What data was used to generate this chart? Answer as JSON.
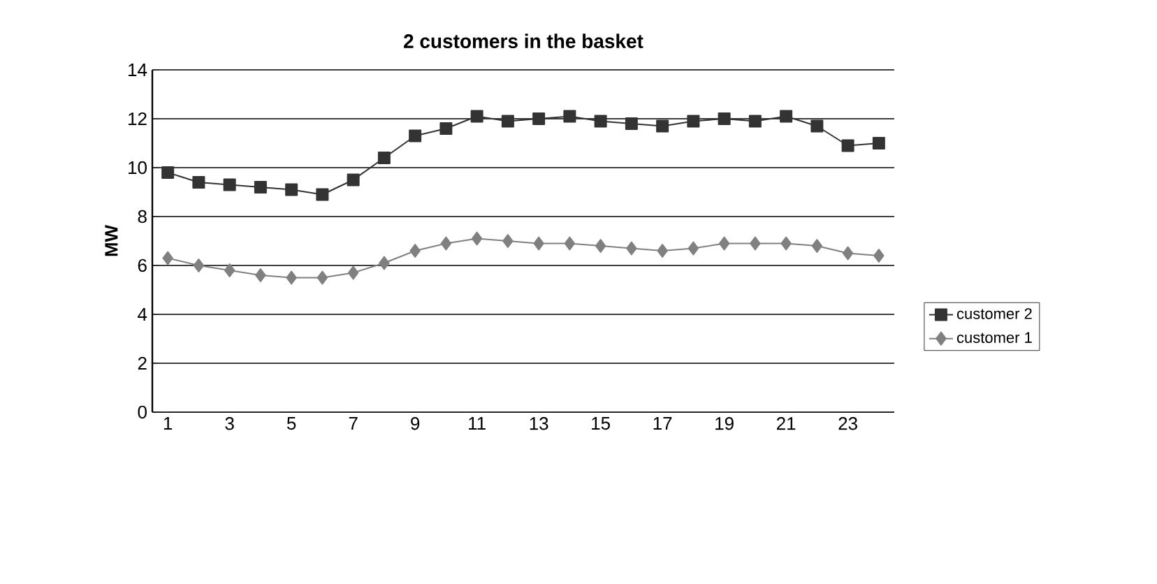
{
  "chart_data": {
    "type": "line",
    "title": "2 customers in the basket",
    "ylabel": "MW",
    "categories": [
      "1",
      null,
      "3",
      null,
      "5",
      null,
      "7",
      null,
      "9",
      null,
      "11",
      null,
      "13",
      null,
      "15",
      null,
      "17",
      null,
      "19",
      null,
      "21",
      null,
      "23",
      null
    ],
    "series": [
      {
        "name": "customer 2",
        "color": "#333333",
        "marker": "square",
        "values": [
          9.8,
          9.4,
          9.3,
          9.2,
          9.1,
          8.9,
          9.5,
          10.4,
          11.3,
          11.6,
          12.1,
          11.9,
          12.0,
          12.1,
          11.9,
          11.8,
          11.7,
          11.9,
          12.0,
          11.9,
          12.1,
          11.7,
          10.9,
          11.0
        ]
      },
      {
        "name": "customer 1",
        "color": "#808080",
        "marker": "diamond",
        "values": [
          6.3,
          6.0,
          5.8,
          5.6,
          5.5,
          5.5,
          5.7,
          6.1,
          6.6,
          6.9,
          7.1,
          7.0,
          6.9,
          6.9,
          6.8,
          6.7,
          6.6,
          6.7,
          6.9,
          6.9,
          6.9,
          6.8,
          6.5,
          6.4
        ]
      }
    ],
    "ylim": [
      0,
      14
    ],
    "yticks": [
      0,
      2,
      4,
      6,
      8,
      10,
      12,
      14
    ],
    "grid": "y",
    "legend": "right",
    "line_style": "solid"
  }
}
